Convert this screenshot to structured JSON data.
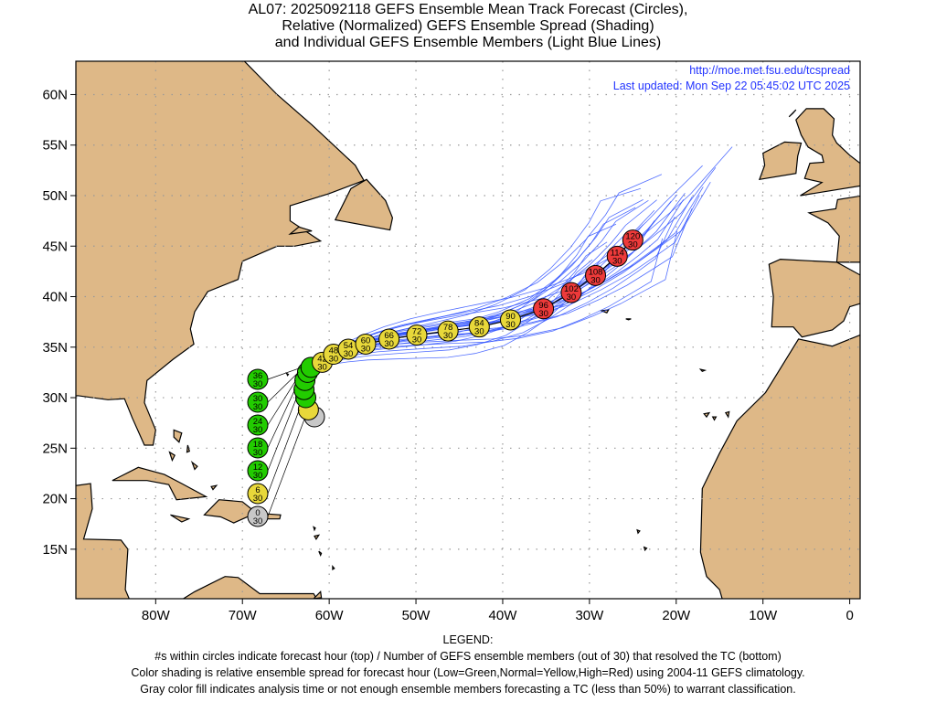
{
  "title": {
    "line1": "AL07: 2025092118 GEFS Ensemble Mean Track Forecast (Circles),",
    "line2": "Relative (Normalized) GEFS Ensemble Spread (Shading)",
    "line3": "and Individual GEFS Ensemble Members (Light Blue Lines)"
  },
  "info": {
    "url": "http://moe.met.fsu.edu/tcspread",
    "updated": "Last updated: Mon Sep 22 05:45:02 UTC 2025"
  },
  "legend": {
    "heading": "LEGEND:",
    "line1": "#s within circles indicate forecast hour (top) / Number of GEFS ensemble members (out of 30) that resolved the TC (bottom)",
    "line2": "Color shading is relative ensemble spread for forecast hour (Low=Green,Normal=Yellow,High=Red) using 2004-11 GEFS climatology.",
    "line3": "Gray color fill indicates analysis time or not enough ensemble members forecasting a TC (less than 50%) to warrant classification."
  },
  "colors": {
    "gray": "#c8c8c8",
    "green": "#22cc00",
    "yellow": "#e8d83a",
    "red": "#ee3a3a",
    "member": "#3355ff",
    "land": "#deb887"
  },
  "chart_data": {
    "type": "map-track",
    "lon_range": [
      -89.2,
      1.2
    ],
    "lat_range": [
      10.1,
      63.3
    ],
    "x_ticks": [
      {
        "lon": -80,
        "label": "80W"
      },
      {
        "lon": -70,
        "label": "70W"
      },
      {
        "lon": -60,
        "label": "60W"
      },
      {
        "lon": -50,
        "label": "50W"
      },
      {
        "lon": -40,
        "label": "40W"
      },
      {
        "lon": -30,
        "label": "30W"
      },
      {
        "lon": -20,
        "label": "20W"
      },
      {
        "lon": -10,
        "label": "10W"
      },
      {
        "lon": 0,
        "label": "0"
      }
    ],
    "y_ticks": [
      {
        "lat": 15,
        "label": "15N"
      },
      {
        "lat": 20,
        "label": "20N"
      },
      {
        "lat": 25,
        "label": "25N"
      },
      {
        "lat": 30,
        "label": "30N"
      },
      {
        "lat": 35,
        "label": "35N"
      },
      {
        "lat": 40,
        "label": "40N"
      },
      {
        "lat": 45,
        "label": "45N"
      },
      {
        "lat": 50,
        "label": "50N"
      },
      {
        "lat": 55,
        "label": "55N"
      },
      {
        "lat": 60,
        "label": "60N"
      }
    ],
    "grid": true,
    "ensemble_members": 30,
    "track": [
      {
        "hour": "0",
        "members": "30",
        "lon": -61.7,
        "lat": 28.1,
        "spread": "gray"
      },
      {
        "hour": "6",
        "members": "30",
        "lon": -62.4,
        "lat": 28.8,
        "spread": "yellow"
      },
      {
        "hour": "12",
        "members": "30",
        "lon": -62.7,
        "lat": 30.0,
        "spread": "green"
      },
      {
        "hour": "18",
        "members": "30",
        "lon": -62.9,
        "lat": 30.8,
        "spread": "green"
      },
      {
        "hour": "24",
        "members": "30",
        "lon": -62.8,
        "lat": 31.7,
        "spread": "green"
      },
      {
        "hour": "30",
        "members": "30",
        "lon": -62.5,
        "lat": 32.5,
        "spread": "green"
      },
      {
        "hour": "36",
        "members": "30",
        "lon": -62.1,
        "lat": 33.0,
        "spread": "green"
      },
      {
        "hour": "42",
        "members": "30",
        "lon": -60.8,
        "lat": 33.5,
        "spread": "yellow"
      },
      {
        "hour": "48",
        "members": "30",
        "lon": -59.5,
        "lat": 34.3,
        "spread": "yellow"
      },
      {
        "hour": "54",
        "members": "30",
        "lon": -57.8,
        "lat": 34.8,
        "spread": "yellow"
      },
      {
        "hour": "60",
        "members": "30",
        "lon": -55.8,
        "lat": 35.3,
        "spread": "yellow"
      },
      {
        "hour": "66",
        "members": "30",
        "lon": -53.1,
        "lat": 35.8,
        "spread": "yellow"
      },
      {
        "hour": "72",
        "members": "30",
        "lon": -49.9,
        "lat": 36.2,
        "spread": "yellow"
      },
      {
        "hour": "78",
        "members": "30",
        "lon": -46.3,
        "lat": 36.6,
        "spread": "yellow"
      },
      {
        "hour": "84",
        "members": "30",
        "lon": -42.7,
        "lat": 37.0,
        "spread": "yellow"
      },
      {
        "hour": "90",
        "members": "30",
        "lon": -39.1,
        "lat": 37.7,
        "spread": "yellow"
      },
      {
        "hour": "96",
        "members": "30",
        "lon": -35.3,
        "lat": 38.8,
        "spread": "red"
      },
      {
        "hour": "102",
        "members": "30",
        "lon": -32.1,
        "lat": 40.4,
        "spread": "red"
      },
      {
        "hour": "108",
        "members": "30",
        "lon": -29.3,
        "lat": 42.1,
        "spread": "red"
      },
      {
        "hour": "114",
        "members": "30",
        "lon": -26.8,
        "lat": 44.0,
        "spread": "red"
      },
      {
        "hour": "120",
        "members": "30",
        "lon": -25.0,
        "lat": 45.6,
        "spread": "red"
      }
    ]
  }
}
